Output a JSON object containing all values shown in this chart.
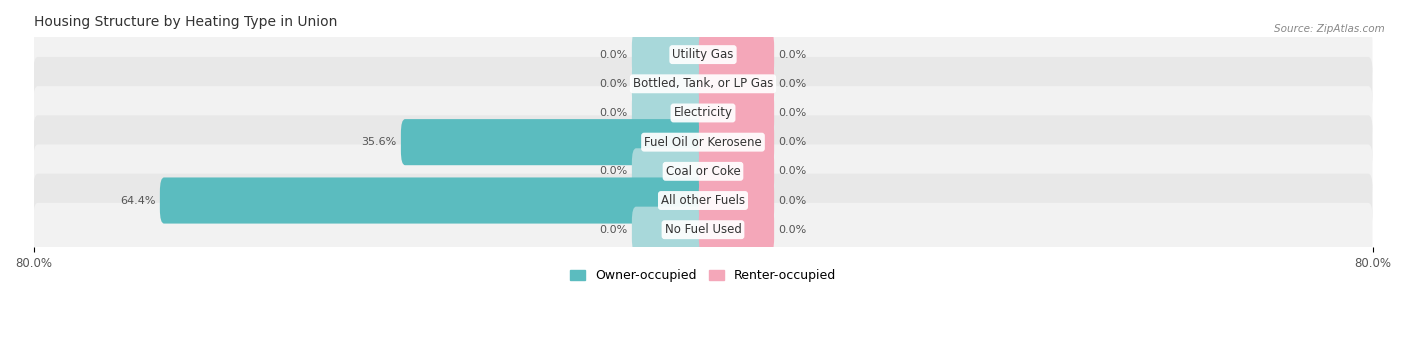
{
  "title": "Housing Structure by Heating Type in Union",
  "source_text": "Source: ZipAtlas.com",
  "categories": [
    "Utility Gas",
    "Bottled, Tank, or LP Gas",
    "Electricity",
    "Fuel Oil or Kerosene",
    "Coal or Coke",
    "All other Fuels",
    "No Fuel Used"
  ],
  "owner_values": [
    0.0,
    0.0,
    0.0,
    35.6,
    0.0,
    64.4,
    0.0
  ],
  "renter_values": [
    0.0,
    0.0,
    0.0,
    0.0,
    0.0,
    0.0,
    0.0
  ],
  "owner_color": "#5bbcbf",
  "owner_color_light": "#a8d8da",
  "renter_color": "#f4a7b9",
  "renter_color_light": "#f4a7b9",
  "row_bg_color_light": "#f2f2f2",
  "row_bg_color_dark": "#e8e8e8",
  "xlim_left": -80,
  "xlim_right": 80,
  "title_fontsize": 10,
  "label_fontsize": 8,
  "category_fontsize": 8.5,
  "axis_tick_fontsize": 8.5,
  "legend_fontsize": 9,
  "bar_height": 0.58,
  "stub_size": 8.0,
  "background_color": "#ffffff",
  "text_color": "#555555"
}
